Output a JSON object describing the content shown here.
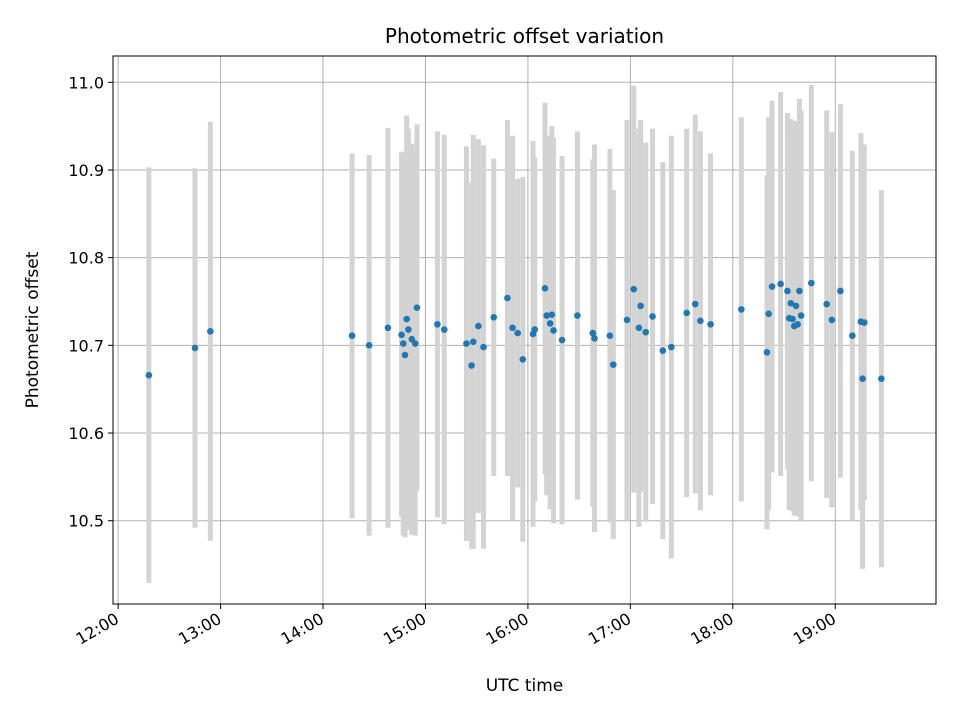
{
  "chart_data": {
    "type": "scatter",
    "title": "Photometric offset variation",
    "xlabel": "UTC time",
    "ylabel": "Photometric offset",
    "x_ticks": [
      "12:00",
      "13:00",
      "14:00",
      "15:00",
      "16:00",
      "17:00",
      "18:00",
      "19:00"
    ],
    "y_ticks": [
      10.5,
      10.6,
      10.7,
      10.8,
      10.9,
      11.0
    ],
    "xlim": [
      "11:57",
      "19:59"
    ],
    "ylim": [
      10.405,
      11.03
    ],
    "grid": true,
    "colors": {
      "point": "#1f77b4",
      "errorbar": "#d3d3d3",
      "grid": "#b0b0b0"
    },
    "series": [
      {
        "x": [
          "12:18",
          "12:45",
          "12:54",
          "14:17",
          "14:27",
          "14:38",
          "14:46",
          "14:47",
          "14:48",
          "14:49",
          "14:50",
          "14:52",
          "14:54",
          "14:55",
          "15:07",
          "15:11",
          "15:24",
          "15:27",
          "15:28",
          "15:31",
          "15:34",
          "15:40",
          "15:48",
          "15:51",
          "15:54",
          "15:57",
          "16:03",
          "16:04",
          "16:10",
          "16:11",
          "16:13",
          "16:14",
          "16:15",
          "16:20",
          "16:29",
          "16:38",
          "16:39",
          "16:48",
          "16:50",
          "16:58",
          "17:02",
          "17:05",
          "17:06",
          "17:09",
          "17:13",
          "17:19",
          "17:24",
          "17:33",
          "17:38",
          "17:41",
          "17:47",
          "18:05",
          "18:20",
          "18:21",
          "18:23",
          "18:28",
          "18:32",
          "18:33",
          "18:34",
          "18:35",
          "18:36",
          "18:37",
          "18:38",
          "18:39",
          "18:40",
          "18:46",
          "18:55",
          "18:58",
          "19:03",
          "19:10",
          "19:15",
          "19:16",
          "19:17",
          "19:27"
        ],
        "y": [
          10.666,
          10.697,
          10.716,
          10.711,
          10.7,
          10.72,
          10.712,
          10.702,
          10.689,
          10.73,
          10.718,
          10.707,
          10.702,
          10.743,
          10.724,
          10.718,
          10.702,
          10.677,
          10.704,
          10.722,
          10.698,
          10.732,
          10.754,
          10.72,
          10.714,
          10.684,
          10.713,
          10.718,
          10.765,
          10.734,
          10.725,
          10.735,
          10.717,
          10.706,
          10.734,
          10.714,
          10.708,
          10.711,
          10.678,
          10.729,
          10.764,
          10.72,
          10.745,
          10.715,
          10.733,
          10.694,
          10.698,
          10.737,
          10.747,
          10.728,
          10.724,
          10.741,
          10.692,
          10.736,
          10.767,
          10.77,
          10.762,
          10.731,
          10.748,
          10.73,
          10.722,
          10.745,
          10.724,
          10.762,
          10.734,
          10.771,
          10.747,
          10.729,
          10.762,
          10.711,
          10.727,
          10.662,
          10.726,
          10.662
        ],
        "yerr": [
          0.237,
          0.205,
          0.239,
          0.208,
          0.217,
          0.228,
          0.208,
          0.219,
          0.208,
          0.232,
          0.229,
          0.223,
          0.219,
          0.209,
          0.22,
          0.222,
          0.225,
          0.209,
          0.236,
          0.213,
          0.23,
          0.181,
          0.203,
          0.219,
          0.176,
          0.208,
          0.22,
          0.196,
          0.212,
          0.205,
          0.212,
          0.215,
          0.22,
          0.21,
          0.21,
          0.198,
          0.221,
          0.213,
          0.199,
          0.228,
          0.232,
          0.227,
          0.212,
          0.216,
          0.214,
          0.215,
          0.241,
          0.21,
          0.216,
          0.216,
          0.195,
          0.219,
          0.202,
          0.224,
          0.212,
          0.219,
          0.203,
          0.219,
          0.21,
          0.219,
          0.216,
          0.211,
          0.219,
          0.219,
          0.234,
          0.226,
          0.221,
          0.214,
          0.213,
          0.211,
          0.215,
          0.217,
          0.203,
          0.215
        ]
      }
    ]
  }
}
